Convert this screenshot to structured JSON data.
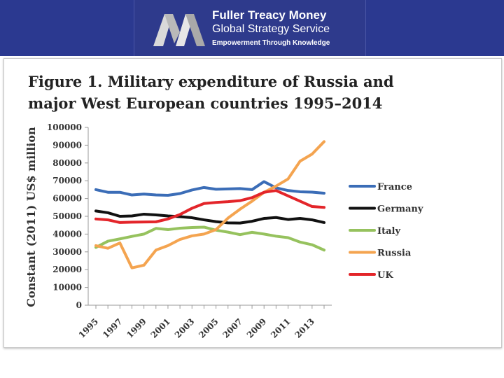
{
  "header": {
    "brand_name": "Fuller Treacy Money",
    "brand_service": "Global Strategy Service",
    "tagline": "Empowerment Through Knowledge"
  },
  "figure": {
    "title_line1": "Figure 1. Military expenditure of Russia and",
    "title_line2": "major West European countries 1995–2014"
  },
  "chart_data": {
    "type": "line",
    "title": "Figure 1. Military expenditure of Russia and major West European countries 1995–2014",
    "xlabel": "",
    "ylabel": "Constant (2011) US$ million",
    "xlim": [
      1995,
      2014
    ],
    "ylim": [
      0,
      100000
    ],
    "grid": false,
    "legend_position": "right",
    "yticks": [
      "0",
      "10000",
      "20000",
      "30000",
      "40000",
      "50000",
      "60000",
      "70000",
      "80000",
      "90000",
      "100000"
    ],
    "xticks": [
      "1995",
      "1997",
      "1999",
      "2001",
      "2003",
      "2005",
      "2007",
      "2009",
      "2011",
      "2013"
    ],
    "x": [
      1995,
      1996,
      1997,
      1998,
      1999,
      2000,
      2001,
      2002,
      2003,
      2004,
      2005,
      2006,
      2007,
      2008,
      2009,
      2010,
      2011,
      2012,
      2013,
      2014
    ],
    "series": [
      {
        "name": "France",
        "color": "#3b6db7",
        "values": [
          65000,
          63500,
          63500,
          62000,
          62500,
          62000,
          61800,
          62800,
          64800,
          66200,
          65200,
          65400,
          65600,
          65000,
          69500,
          66000,
          64500,
          63800,
          63600,
          63000
        ]
      },
      {
        "name": "Germany",
        "color": "#111111",
        "values": [
          53000,
          52000,
          50000,
          50200,
          51200,
          50800,
          50200,
          49800,
          49200,
          48000,
          47000,
          46300,
          46200,
          47200,
          48800,
          49300,
          48200,
          48800,
          48000,
          46500
        ]
      },
      {
        "name": "Italy",
        "color": "#96c25e",
        "values": [
          32500,
          36000,
          37300,
          38700,
          40000,
          43200,
          42500,
          43300,
          43700,
          43900,
          42200,
          41100,
          39700,
          41000,
          40000,
          38800,
          38000,
          35500,
          34000,
          31000
        ]
      },
      {
        "name": "Russia",
        "color": "#f4a450",
        "values": [
          33500,
          32000,
          35000,
          21000,
          22500,
          31000,
          33500,
          37000,
          39000,
          40000,
          42500,
          49000,
          54000,
          58500,
          63500,
          67000,
          71000,
          81000,
          85000,
          92000
        ]
      },
      {
        "name": "UK",
        "color": "#e3252a",
        "values": [
          48500,
          48000,
          46500,
          46700,
          46800,
          46900,
          48500,
          51000,
          54500,
          57200,
          57800,
          58200,
          58800,
          60500,
          63500,
          64500,
          61500,
          58500,
          55500,
          55000
        ]
      }
    ]
  }
}
